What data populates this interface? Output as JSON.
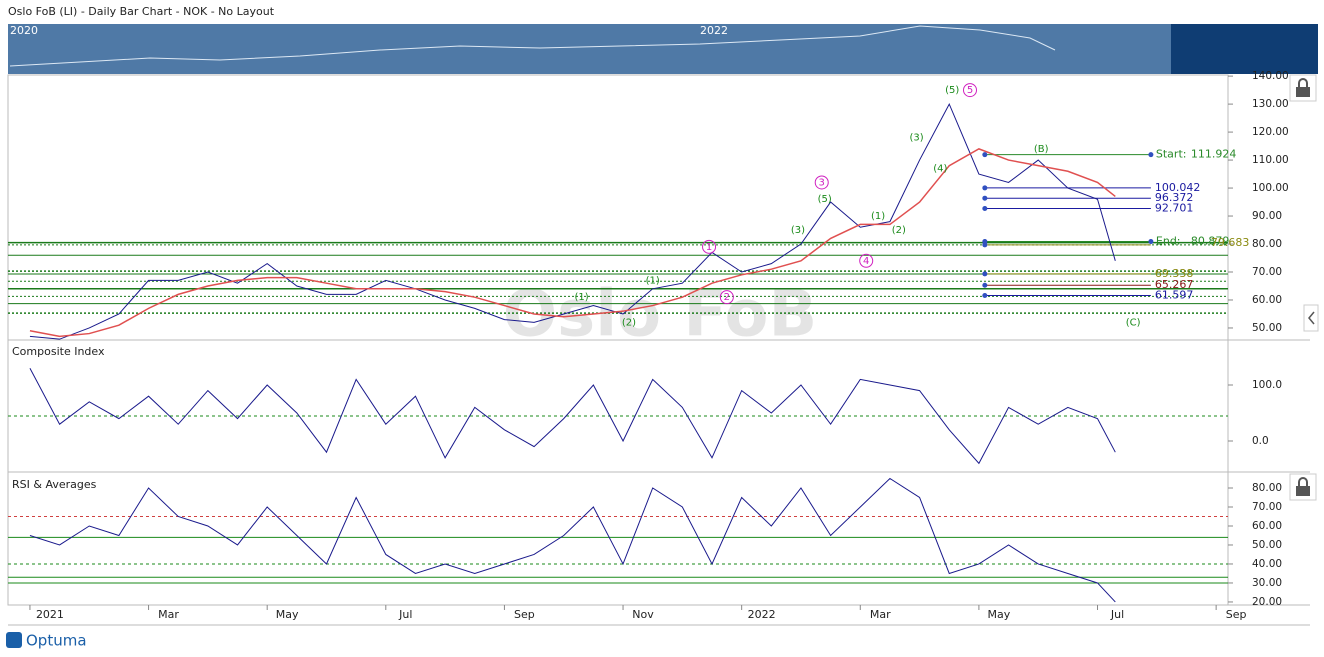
{
  "header": {
    "title": "Oslo FoB (LI) - Daily Bar Chart - NOK - No Layout"
  },
  "navigator": {
    "labels": [
      "2020",
      "2022"
    ]
  },
  "x_axis": {
    "labels": [
      "2021",
      "Mar",
      "May",
      "Jul",
      "Sep",
      "Nov",
      "2022",
      "Mar",
      "May",
      "Jul",
      "Sep"
    ]
  },
  "price_panel": {
    "type": "line",
    "watermark": "Oslo FoB",
    "ylim": [
      45.7,
      140.4
    ],
    "yticks": [
      {
        "value": 140,
        "label": "140.00"
      },
      {
        "value": 130,
        "label": "130.00"
      },
      {
        "value": 120,
        "label": "120.00"
      },
      {
        "value": 110,
        "label": "110.00"
      },
      {
        "value": 100,
        "label": "100.00"
      },
      {
        "value": 90,
        "label": "90.00"
      },
      {
        "value": 80,
        "label": "80.00"
      },
      {
        "value": 70,
        "label": "70.00"
      },
      {
        "value": 60,
        "label": "60.00"
      },
      {
        "value": 50,
        "label": "50.00"
      }
    ],
    "xlim": [
      -0.37,
      20.2
    ],
    "x": [
      0,
      0.5,
      1,
      1.5,
      2,
      2.5,
      3,
      3.5,
      4,
      4.5,
      5,
      5.5,
      6,
      6.5,
      7,
      7.5,
      8,
      8.5,
      9,
      9.5,
      10,
      10.5,
      11,
      11.5,
      12,
      12.5,
      13,
      13.5,
      14,
      14.5,
      15,
      15.5,
      16,
      16.5,
      17,
      17.5,
      18,
      18.3
    ],
    "series": [
      {
        "color": "#1a1a8c",
        "values": [
          47,
          46,
          50,
          55,
          67,
          67,
          70,
          66,
          73,
          65,
          62,
          62,
          67,
          64,
          60,
          57,
          53,
          52,
          55,
          58,
          55,
          64,
          66,
          77,
          70,
          73,
          80,
          95,
          86,
          88,
          110,
          130,
          105,
          102,
          110,
          100,
          96,
          74
        ]
      },
      {
        "color": "#e05050",
        "values": [
          49,
          47,
          48,
          51,
          57,
          62,
          65,
          67,
          68,
          68,
          66,
          64,
          64,
          64,
          63,
          61,
          58,
          55,
          54,
          55,
          56,
          58,
          61,
          66,
          69,
          71,
          74,
          82,
          87,
          87,
          95,
          108,
          114,
          110,
          108,
          106,
          102,
          97
        ]
      }
    ],
    "support_levels": [
      80.5,
      79.7,
      76,
      70.3,
      69.3,
      66.7,
      64,
      61.3,
      58.7,
      55.3
    ],
    "fib_levels": [
      {
        "label": "Start:",
        "value": 111.924,
        "color": "#2a8a2a"
      },
      {
        "value": 100.042,
        "color": "#1a1aa0"
      },
      {
        "value": 96.372,
        "color": "#1a1aa0"
      },
      {
        "value": 92.701,
        "color": "#1a1aa0"
      },
      {
        "label": "End:",
        "value": 80.879,
        "color": "#2a8a2a"
      },
      {
        "value": 79.683,
        "color": "#8a8a10"
      },
      {
        "value": 69.338,
        "color": "#8a8a10"
      },
      {
        "value": 65.267,
        "color": "#8a1a1a"
      },
      {
        "value": 61.597,
        "color": "#1a1aa0"
      }
    ],
    "annotations": [
      {
        "text": "(5)",
        "x": 15.55,
        "y": 135,
        "color": "#1a8a1a"
      },
      {
        "text": "5",
        "x": 15.85,
        "y": 135,
        "color": "#d020c0"
      },
      {
        "text": "(3)",
        "x": 14.95,
        "y": 118,
        "color": "#1a8a1a"
      },
      {
        "text": "(4)",
        "x": 15.35,
        "y": 107,
        "color": "#1a8a1a"
      },
      {
        "text": "(B)",
        "x": 17.05,
        "y": 114,
        "color": "#1a8a1a"
      },
      {
        "text": "3",
        "x": 13.35,
        "y": 102,
        "color": "#d020c0"
      },
      {
        "text": "(5)",
        "x": 13.4,
        "y": 96,
        "color": "#1a8a1a"
      },
      {
        "text": "(1)",
        "x": 14.3,
        "y": 90,
        "color": "#1a8a1a"
      },
      {
        "text": "(2)",
        "x": 14.65,
        "y": 85,
        "color": "#1a8a1a"
      },
      {
        "text": "(3)",
        "x": 12.95,
        "y": 85,
        "color": "#1a8a1a"
      },
      {
        "text": "4",
        "x": 14.1,
        "y": 74,
        "color": "#d020c0"
      },
      {
        "text": "1",
        "x": 11.45,
        "y": 79,
        "color": "#d020c0"
      },
      {
        "text": "2",
        "x": 11.75,
        "y": 61,
        "color": "#d020c0"
      },
      {
        "text": "(1)",
        "x": 10.5,
        "y": 67,
        "color": "#1a8a1a"
      },
      {
        "text": "(2)",
        "x": 10.1,
        "y": 52,
        "color": "#1a8a1a"
      },
      {
        "text": "(1)",
        "x": 9.3,
        "y": 61,
        "color": "#1a8a1a"
      },
      {
        "text": "(C)",
        "x": 18.6,
        "y": 52,
        "color": "#1a8a1a"
      }
    ]
  },
  "composite_panel": {
    "type": "line",
    "title": "Composite Index",
    "ylim": [
      -53.6,
      178.6
    ],
    "yticks": [
      {
        "value": 100,
        "label": "100.0"
      },
      {
        "value": 0,
        "label": "0.0"
      }
    ],
    "reference": 44.6,
    "values": [
      130,
      30,
      70,
      40,
      80,
      30,
      90,
      40,
      100,
      50,
      -20,
      110,
      30,
      80,
      -30,
      60,
      20,
      -10,
      40,
      100,
      0,
      110,
      60,
      -30,
      90,
      50,
      100,
      30,
      110,
      100,
      90,
      20,
      -40,
      60,
      30,
      60,
      40,
      -20
    ]
  },
  "rsi_panel": {
    "type": "line",
    "title": "RSI & Averages",
    "ylim": [
      18.4,
      87.9
    ],
    "yticks": [
      {
        "value": 80,
        "label": "80.00"
      },
      {
        "value": 70,
        "label": "70.00"
      },
      {
        "value": 60,
        "label": "60.00"
      },
      {
        "value": 50,
        "label": "50.00"
      },
      {
        "value": 40,
        "label": "40.00"
      },
      {
        "value": 30,
        "label": "30.00"
      },
      {
        "value": 20,
        "label": "20.00"
      }
    ],
    "levels": [
      {
        "value": 65,
        "color": "#d04040"
      },
      {
        "value": 54,
        "color": "#1a8a1a"
      },
      {
        "value": 40,
        "color": "#1a8a1a"
      },
      {
        "value": 33,
        "color": "#1a8a1a"
      },
      {
        "value": 30,
        "color": "#1a8a1a"
      }
    ],
    "values": [
      55,
      50,
      60,
      55,
      80,
      65,
      60,
      50,
      70,
      55,
      40,
      75,
      45,
      35,
      40,
      35,
      40,
      45,
      55,
      70,
      40,
      80,
      70,
      40,
      75,
      60,
      80,
      55,
      70,
      85,
      75,
      35,
      40,
      50,
      40,
      35,
      30,
      20
    ]
  },
  "footer": {
    "brand": "Optuma"
  }
}
